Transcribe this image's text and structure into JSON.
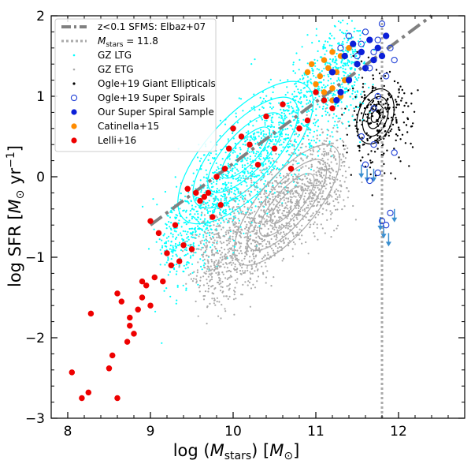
{
  "chart_data": {
    "type": "scatter",
    "xlabel": "log (M_stars) [M_⊙]",
    "ylabel": "log SFR [M_⊙ yr^−1]",
    "xlim": [
      7.8,
      12.8
    ],
    "ylim": [
      -3,
      2
    ],
    "xticks": [
      8,
      9,
      10,
      11,
      12
    ],
    "yticks": [
      -3,
      -2,
      -1,
      0,
      1,
      2
    ],
    "xtick_labels": [
      "8",
      "9",
      "10",
      "11",
      "12"
    ],
    "ytick_labels": [
      "−3",
      "−2",
      "−1",
      "0",
      "1",
      "2"
    ],
    "legend_position": "top-left",
    "colors": {
      "sfms": "#808080",
      "mstars": "#aaaaaa",
      "gz_ltg": "#00ffff",
      "gz_etg": "#aaaaaa",
      "ogle_ge": "#000000",
      "ogle_ss": "#1f3fd6",
      "our_ss": "#0b1fd8",
      "catinella": "#ff8c00",
      "lelli": "#ee0000",
      "upper_limit": "#3a8fd0"
    },
    "legend": [
      {
        "key": "sfms",
        "label": "z<0.1 SFMS: Elbaz+07",
        "style": "dashdot"
      },
      {
        "key": "mstars",
        "label": "M_stars = 11.8",
        "style": "dotted"
      },
      {
        "key": "gz_ltg",
        "label": "GZ LTG",
        "style": "tiny-dot"
      },
      {
        "key": "gz_etg",
        "label": "GZ ETG",
        "style": "tiny-dot"
      },
      {
        "key": "ogle_ge",
        "label": "Ogle+19 Giant Ellipticals",
        "style": "small-dot"
      },
      {
        "key": "ogle_ss",
        "label": "Ogle+19 Super Spirals",
        "style": "open-circle"
      },
      {
        "key": "our_ss",
        "label": "Our Super Spiral Sample",
        "style": "filled-circle"
      },
      {
        "key": "catinella",
        "label": "Catinella+15",
        "style": "filled-circle"
      },
      {
        "key": "lelli",
        "label": "Lelli+16",
        "style": "filled-circle"
      }
    ],
    "sfms_line": {
      "x": [
        9.0,
        12.4
      ],
      "y": [
        -0.6,
        2.0
      ]
    },
    "mstars_line": {
      "x": 11.8
    },
    "series": [
      {
        "name": "Lelli+16",
        "x": [
          8.05,
          8.17,
          8.25,
          8.28,
          8.5,
          8.54,
          8.6,
          8.6,
          8.65,
          8.72,
          8.75,
          8.75,
          8.8,
          8.85,
          8.9,
          8.9,
          8.95,
          9.0,
          9.0,
          9.05,
          9.1,
          9.15,
          9.2,
          9.25,
          9.3,
          9.35,
          9.4,
          9.45,
          9.5,
          9.55,
          9.6,
          9.65,
          9.7,
          9.75,
          9.8,
          9.85,
          9.9,
          9.95,
          10.0,
          10.1,
          10.2,
          10.3,
          10.4,
          10.5,
          10.6,
          10.7,
          10.8,
          10.9,
          11.0,
          11.1,
          11.2
        ],
        "y": [
          -2.43,
          -2.75,
          -2.68,
          -1.7,
          -2.38,
          -2.22,
          -2.75,
          -1.45,
          -1.55,
          -2.05,
          -1.75,
          -1.85,
          -1.95,
          -1.65,
          -1.3,
          -1.5,
          -1.35,
          -1.6,
          -0.55,
          -1.25,
          -0.7,
          -1.3,
          -0.95,
          -1.1,
          -0.6,
          -1.05,
          -0.85,
          -0.15,
          -0.9,
          -0.2,
          -0.3,
          -0.25,
          -0.2,
          -0.5,
          0.0,
          -0.35,
          0.1,
          0.35,
          0.6,
          0.5,
          0.4,
          0.15,
          0.75,
          0.35,
          0.9,
          0.1,
          0.6,
          0.7,
          1.05,
          0.95,
          0.85
        ]
      },
      {
        "name": "Catinella+15",
        "x": [
          10.9,
          10.95,
          11.0,
          11.05,
          11.1,
          11.15,
          11.2,
          11.2,
          11.25,
          11.3,
          11.35,
          11.4,
          11.45,
          11.1,
          11.2,
          11.3
        ],
        "y": [
          1.3,
          1.4,
          1.15,
          1.25,
          1.45,
          1.35,
          1.1,
          1.55,
          1.3,
          1.5,
          1.2,
          1.6,
          1.65,
          1.05,
          0.95,
          1.0
        ]
      },
      {
        "name": "Our Super Spiral Sample",
        "x": [
          11.2,
          11.3,
          11.35,
          11.4,
          11.5,
          11.55,
          11.6,
          11.65,
          11.7,
          11.75,
          11.8,
          11.85,
          11.25,
          11.45
        ],
        "y": [
          1.3,
          1.05,
          1.5,
          1.2,
          1.4,
          1.55,
          1.35,
          1.7,
          1.45,
          1.6,
          1.5,
          1.75,
          0.95,
          1.65
        ]
      },
      {
        "name": "Ogle+19 Super Spirals",
        "x": [
          11.3,
          11.4,
          11.5,
          11.55,
          11.6,
          11.65,
          11.7,
          11.75,
          11.8,
          11.85,
          11.9,
          11.95,
          11.55,
          11.6,
          11.7,
          11.75,
          11.65,
          11.8,
          11.85,
          11.9,
          11.95,
          11.7,
          11.75
        ],
        "y": [
          1.6,
          1.75,
          1.5,
          1.65,
          1.8,
          1.35,
          1.55,
          1.7,
          1.9,
          1.25,
          1.6,
          1.45,
          0.5,
          0.15,
          0.4,
          0.05,
          -0.05,
          -0.55,
          -0.6,
          -0.45,
          0.3,
          0.85,
          1.0
        ]
      }
    ]
  }
}
